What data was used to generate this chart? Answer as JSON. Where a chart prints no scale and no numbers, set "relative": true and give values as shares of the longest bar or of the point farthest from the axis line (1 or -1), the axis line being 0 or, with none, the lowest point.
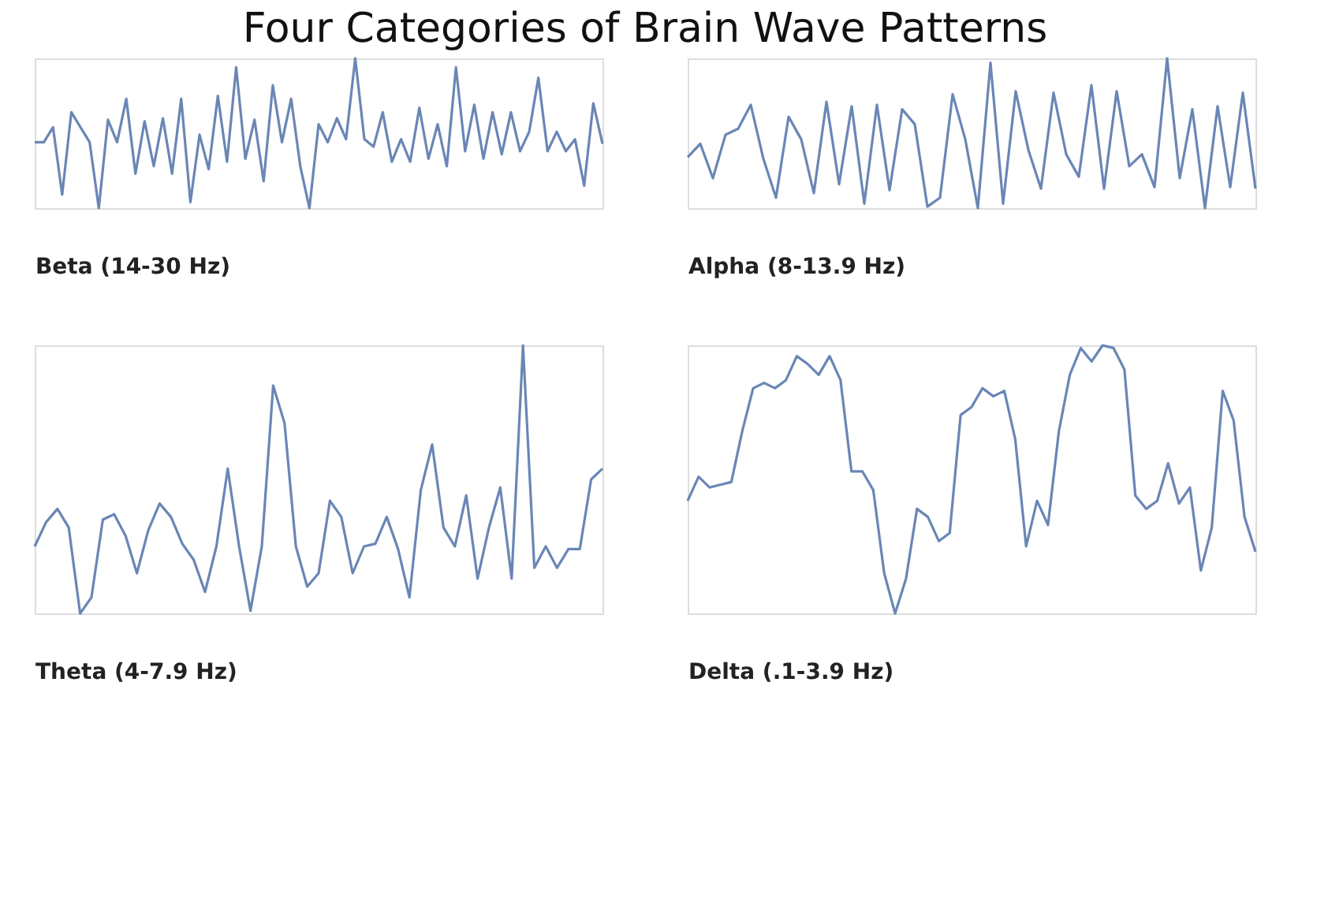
{
  "chart_data": [
    {
      "type": "line",
      "title": "Four Categories of Brain Wave Patterns",
      "xlabel": "Beta (14-30 Hz)",
      "relative": true,
      "tick_labels": false,
      "categories": [
        null,
        null,
        null,
        null,
        null,
        null,
        null,
        null,
        null,
        null,
        null,
        null,
        null,
        null,
        null,
        null,
        null,
        null,
        null,
        null,
        null,
        null,
        null,
        null,
        null,
        null,
        null,
        null,
        null,
        null,
        null,
        null,
        null,
        null,
        null,
        null,
        null,
        null,
        null,
        null,
        null,
        null,
        null,
        null,
        null,
        null,
        null,
        null,
        null,
        null,
        null,
        null,
        null,
        null,
        null,
        null,
        null,
        null,
        null,
        null,
        null,
        null,
        null
      ],
      "series": [
        {
          "color": "#6a86b5",
          "values": [
            0.44,
            0.44,
            0.54,
            0.09,
            0.64,
            0.54,
            0.44,
            0,
            0.59,
            0.44,
            0.73,
            0.23,
            0.58,
            0.28,
            0.6,
            0.23,
            0.73,
            0.04,
            0.49,
            0.26,
            0.75,
            0.31,
            0.94,
            0.33,
            0.59,
            0.18,
            0.82,
            0.44,
            0.73,
            0.28,
            0,
            0.56,
            0.44,
            0.6,
            0.46,
            1.0,
            0.46,
            0.41,
            0.64,
            0.31,
            0.46,
            0.31,
            0.67,
            0.33,
            0.56,
            0.28,
            0.94,
            0.38,
            0.69,
            0.33,
            0.64,
            0.36,
            0.64,
            0.38,
            0.51,
            0.87,
            0.38,
            0.51,
            0.38,
            0.46,
            0.15,
            0.7,
            0.43
          ]
        }
      ]
    },
    {
      "type": "line",
      "xlabel": "Alpha (8-13.9 Hz)",
      "relative": true,
      "tick_labels": false,
      "categories": [
        null,
        null,
        null,
        null,
        null,
        null,
        null,
        null,
        null,
        null,
        null,
        null,
        null,
        null,
        null,
        null,
        null,
        null,
        null,
        null,
        null,
        null,
        null,
        null,
        null,
        null,
        null,
        null,
        null,
        null,
        null,
        null,
        null,
        null,
        null,
        null,
        null,
        null,
        null,
        null,
        null,
        null,
        null,
        null,
        null,
        null
      ],
      "series": [
        {
          "color": "#6a86b5",
          "values": [
            0.34,
            0.43,
            0.2,
            0.49,
            0.53,
            0.69,
            0.33,
            0.07,
            0.61,
            0.46,
            0.1,
            0.71,
            0.16,
            0.68,
            0.03,
            0.69,
            0.12,
            0.66,
            0.56,
            0.01,
            0.07,
            0.76,
            0.46,
            0,
            0.97,
            0.03,
            0.78,
            0.39,
            0.13,
            0.77,
            0.36,
            0.21,
            0.82,
            0.13,
            0.78,
            0.28,
            0.36,
            0.14,
            1.0,
            0.2,
            0.66,
            0,
            0.68,
            0.14,
            0.77,
            0.13
          ]
        }
      ]
    },
    {
      "type": "line",
      "xlabel": "Theta (4-7.9 Hz)",
      "relative": true,
      "tick_labels": false,
      "categories": [
        null,
        null,
        null,
        null,
        null,
        null,
        null,
        null,
        null,
        null,
        null,
        null,
        null,
        null,
        null,
        null,
        null,
        null,
        null,
        null,
        null,
        null,
        null,
        null,
        null,
        null,
        null,
        null,
        null,
        null,
        null,
        null,
        null,
        null,
        null,
        null,
        null,
        null,
        null,
        null,
        null,
        null,
        null,
        null,
        null,
        null,
        null,
        null,
        null,
        null,
        null
      ],
      "series": [
        {
          "color": "#6a86b5",
          "values": [
            0.25,
            0.34,
            0.39,
            0.32,
            0,
            0.06,
            0.35,
            0.37,
            0.29,
            0.15,
            0.31,
            0.41,
            0.36,
            0.26,
            0.2,
            0.08,
            0.25,
            0.54,
            0.25,
            0.01,
            0.25,
            0.85,
            0.71,
            0.25,
            0.1,
            0.15,
            0.42,
            0.36,
            0.15,
            0.25,
            0.26,
            0.36,
            0.24,
            0.06,
            0.46,
            0.63,
            0.32,
            0.25,
            0.44,
            0.13,
            0.32,
            0.47,
            0.13,
            1.0,
            0.17,
            0.25,
            0.17,
            0.24,
            0.24,
            0.5,
            0.54
          ]
        }
      ]
    },
    {
      "type": "line",
      "xlabel": "Delta (.1-3.9 Hz)",
      "relative": true,
      "tick_labels": false,
      "categories": [
        null,
        null,
        null,
        null,
        null,
        null,
        null,
        null,
        null,
        null,
        null,
        null,
        null,
        null,
        null,
        null,
        null,
        null,
        null,
        null,
        null,
        null,
        null,
        null,
        null,
        null,
        null,
        null,
        null,
        null,
        null,
        null,
        null,
        null,
        null,
        null,
        null,
        null,
        null,
        null,
        null,
        null,
        null,
        null,
        null,
        null,
        null,
        null,
        null,
        null,
        null,
        null,
        null
      ],
      "series": [
        {
          "color": "#6a86b5",
          "values": [
            0.42,
            0.51,
            0.47,
            0.48,
            0.49,
            0.68,
            0.84,
            0.86,
            0.84,
            0.87,
            0.96,
            0.93,
            0.89,
            0.96,
            0.87,
            0.53,
            0.53,
            0.46,
            0.15,
            0,
            0.13,
            0.39,
            0.36,
            0.27,
            0.3,
            0.74,
            0.77,
            0.84,
            0.81,
            0.83,
            0.65,
            0.25,
            0.42,
            0.33,
            0.68,
            0.89,
            0.99,
            0.94,
            1.0,
            0.99,
            0.91,
            0.44,
            0.39,
            0.42,
            0.56,
            0.41,
            0.47,
            0.16,
            0.32,
            0.83,
            0.72,
            0.36,
            0.23
          ]
        }
      ]
    }
  ]
}
